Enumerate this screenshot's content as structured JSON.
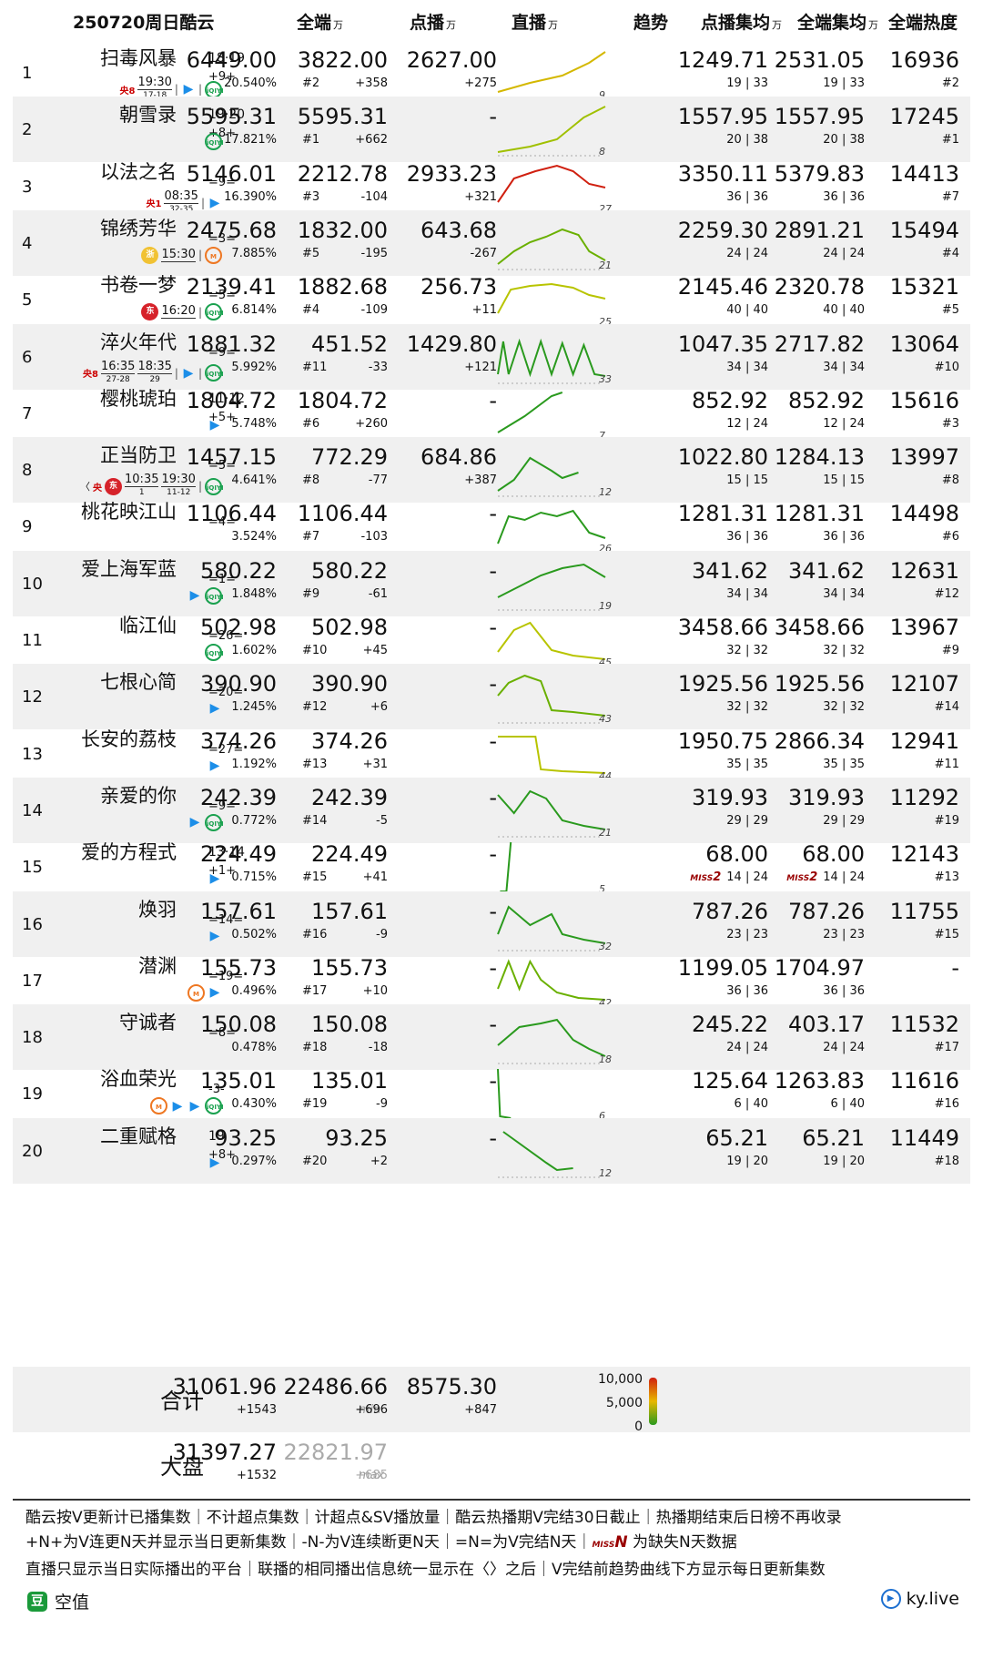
{
  "header": {
    "title": "250720周日酷云",
    "all": "全端",
    "vod": "点播",
    "live": "直播",
    "unit": "万",
    "trend": "趋势",
    "vod_avg": "点播集均",
    "all_avg": "全端集均",
    "heat": "全端热度"
  },
  "rows": [
    {
      "rank": "1",
      "name": "扫毒风暴",
      "eps": "18·19",
      "upd": "+9+",
      "plat": [
        {
          "t": "ch",
          "v": "央8"
        },
        {
          "t": "ts",
          "a": "19:30",
          "b": "17-18"
        },
        {
          "t": "sep"
        },
        {
          "t": "y"
        },
        {
          "t": "sep"
        },
        {
          "t": "i"
        }
      ],
      "all": "6449.00",
      "share": "20.540%",
      "vod": "3822.00",
      "vod_rank": "#2",
      "vod_diff": "+358",
      "live": "2627.00",
      "live_diff": "+275",
      "trend_days": "9",
      "vod_avg": "1249.71",
      "vod_eps": "19 | 33",
      "all_avg": "2531.05",
      "all_eps": "19 | 33",
      "heat": "16936",
      "heat_rank": "#2"
    },
    {
      "rank": "2",
      "name": "朝雪录",
      "eps": "19·20",
      "upd": "+8+",
      "plat": [
        {
          "t": "i"
        }
      ],
      "all": "5595.31",
      "share": "17.821%",
      "vod": "5595.31",
      "vod_rank": "#1",
      "vod_diff": "+662",
      "live": "-",
      "live_diff": "",
      "trend_days": "8",
      "vod_avg": "1557.95",
      "vod_eps": "20 | 38",
      "all_avg": "1557.95",
      "all_eps": "20 | 38",
      "heat": "17245",
      "heat_rank": "#1"
    },
    {
      "rank": "3",
      "name": "以法之名",
      "eps": "",
      "upd": "=9=",
      "plat": [
        {
          "t": "ch",
          "v": "央1"
        },
        {
          "t": "ts",
          "a": "08:35",
          "b": "32-35"
        },
        {
          "t": "sep"
        },
        {
          "t": "y"
        }
      ],
      "all": "5146.01",
      "share": "16.390%",
      "vod": "2212.78",
      "vod_rank": "#3",
      "vod_diff": "-104",
      "live": "2933.23",
      "live_diff": "+321",
      "trend_days": "27",
      "vod_avg": "3350.11",
      "vod_eps": "36 | 36",
      "all_avg": "5379.83",
      "all_eps": "36 | 36",
      "heat": "14413",
      "heat_rank": "#7"
    },
    {
      "rank": "4",
      "name": "锦绣芳华",
      "eps": "",
      "upd": "=3=",
      "plat": [
        {
          "t": "gd",
          "v": "浙"
        },
        {
          "t": "ts",
          "a": "15:30",
          "b": ""
        },
        {
          "t": "sep"
        },
        {
          "t": "m"
        }
      ],
      "all": "2475.68",
      "share": "7.885%",
      "vod": "1832.00",
      "vod_rank": "#5",
      "vod_diff": "-195",
      "live": "643.68",
      "live_diff": "-267",
      "trend_days": "21",
      "vod_avg": "2259.30",
      "vod_eps": "24 | 24",
      "all_avg": "2891.21",
      "all_eps": "24 | 24",
      "heat": "15494",
      "heat_rank": "#4"
    },
    {
      "rank": "5",
      "name": "书卷一梦",
      "eps": "",
      "upd": "=5=",
      "plat": [
        {
          "t": "t",
          "v": "东"
        },
        {
          "t": "ts",
          "a": "16:20",
          "b": ""
        },
        {
          "t": "sep"
        },
        {
          "t": "i"
        }
      ],
      "all": "2139.41",
      "share": "6.814%",
      "vod": "1882.68",
      "vod_rank": "#4",
      "vod_diff": "-109",
      "live": "256.73",
      "live_diff": "+11",
      "trend_days": "25",
      "vod_avg": "2145.46",
      "vod_eps": "40 | 40",
      "all_avg": "2320.78",
      "all_eps": "40 | 40",
      "heat": "15321",
      "heat_rank": "#5"
    },
    {
      "rank": "6",
      "name": "淬火年代",
      "eps": "",
      "upd": "=9=",
      "plat": [
        {
          "t": "ch",
          "v": "央8"
        },
        {
          "t": "ts",
          "a": "16:35",
          "b": "27-28"
        },
        {
          "t": "ts",
          "a": "18:35",
          "b": "29"
        },
        {
          "t": "sep"
        },
        {
          "t": "y"
        },
        {
          "t": "sep"
        },
        {
          "t": "i"
        }
      ],
      "all": "1881.32",
      "share": "5.992%",
      "vod": "451.52",
      "vod_rank": "#11",
      "vod_diff": "-33",
      "live": "1429.80",
      "live_diff": "+121",
      "trend_days": "33",
      "vod_avg": "1047.35",
      "vod_eps": "34 | 34",
      "all_avg": "2717.82",
      "all_eps": "34 | 34",
      "heat": "13064",
      "heat_rank": "#10"
    },
    {
      "rank": "7",
      "name": "樱桃琥珀",
      "eps": "11·12",
      "upd": "+5+",
      "plat": [
        {
          "t": "y"
        }
      ],
      "all": "1804.72",
      "share": "5.748%",
      "vod": "1804.72",
      "vod_rank": "#6",
      "vod_diff": "+260",
      "live": "-",
      "live_diff": "",
      "trend_days": "7",
      "vod_avg": "852.92",
      "vod_eps": "12 | 24",
      "all_avg": "852.92",
      "all_eps": "12 | 24",
      "heat": "15616",
      "heat_rank": "#3"
    },
    {
      "rank": "8",
      "name": "正当防卫",
      "eps": "",
      "upd": "=5=",
      "plat": [
        {
          "t": "txt",
          "v": "〈"
        },
        {
          "t": "ch",
          "v": "央"
        },
        {
          "t": "t",
          "v": "东"
        },
        {
          "t": "ts",
          "a": "10:35",
          "b": "1"
        },
        {
          "t": "ts",
          "a": "19:30",
          "b": "11-12"
        },
        {
          "t": "sep"
        },
        {
          "t": "i"
        }
      ],
      "all": "1457.15",
      "share": "4.641%",
      "vod": "772.29",
      "vod_rank": "#8",
      "vod_diff": "-77",
      "live": "684.86",
      "live_diff": "+387",
      "trend_days": "12",
      "vod_avg": "1022.80",
      "vod_eps": "15 | 15",
      "all_avg": "1284.13",
      "all_eps": "15 | 15",
      "heat": "13997",
      "heat_rank": "#8"
    },
    {
      "rank": "9",
      "name": "桃花映江山",
      "eps": "",
      "upd": "=4=",
      "plat": [],
      "all": "1106.44",
      "share": "3.524%",
      "vod": "1106.44",
      "vod_rank": "#7",
      "vod_diff": "-103",
      "live": "-",
      "live_diff": "",
      "trend_days": "26",
      "vod_avg": "1281.31",
      "vod_eps": "36 | 36",
      "all_avg": "1281.31",
      "all_eps": "36 | 36",
      "heat": "14498",
      "heat_rank": "#6"
    },
    {
      "rank": "10",
      "name": "爱上海军蓝",
      "eps": "",
      "upd": "=1=",
      "plat": [
        {
          "t": "y"
        },
        {
          "t": "i"
        }
      ],
      "all": "580.22",
      "share": "1.848%",
      "vod": "580.22",
      "vod_rank": "#9",
      "vod_diff": "-61",
      "live": "-",
      "live_diff": "",
      "trend_days": "19",
      "vod_avg": "341.62",
      "vod_eps": "34 | 34",
      "all_avg": "341.62",
      "all_eps": "34 | 34",
      "heat": "12631",
      "heat_rank": "#12"
    },
    {
      "rank": "11",
      "name": "临江仙",
      "eps": "",
      "upd": "=26=",
      "plat": [
        {
          "t": "i"
        }
      ],
      "all": "502.98",
      "share": "1.602%",
      "vod": "502.98",
      "vod_rank": "#10",
      "vod_diff": "+45",
      "live": "-",
      "live_diff": "",
      "trend_days": "45",
      "vod_avg": "3458.66",
      "vod_eps": "32 | 32",
      "all_avg": "3458.66",
      "all_eps": "32 | 32",
      "heat": "13967",
      "heat_rank": "#9"
    },
    {
      "rank": "12",
      "name": "七根心简",
      "eps": "",
      "upd": "=20=",
      "plat": [
        {
          "t": "y"
        }
      ],
      "all": "390.90",
      "share": "1.245%",
      "vod": "390.90",
      "vod_rank": "#12",
      "vod_diff": "+6",
      "live": "-",
      "live_diff": "",
      "trend_days": "43",
      "vod_avg": "1925.56",
      "vod_eps": "32 | 32",
      "all_avg": "1925.56",
      "all_eps": "32 | 32",
      "heat": "12107",
      "heat_rank": "#14"
    },
    {
      "rank": "13",
      "name": "长安的荔枝",
      "eps": "",
      "upd": "=27=",
      "plat": [
        {
          "t": "y"
        }
      ],
      "all": "374.26",
      "share": "1.192%",
      "vod": "374.26",
      "vod_rank": "#13",
      "vod_diff": "+31",
      "live": "-",
      "live_diff": "",
      "trend_days": "44",
      "vod_avg": "1950.75",
      "vod_eps": "35 | 35",
      "all_avg": "2866.34",
      "all_eps": "35 | 35",
      "heat": "12941",
      "heat_rank": "#11"
    },
    {
      "rank": "14",
      "name": "亲爱的你",
      "eps": "",
      "upd": "=9=",
      "plat": [
        {
          "t": "y"
        },
        {
          "t": "i"
        }
      ],
      "all": "242.39",
      "share": "0.772%",
      "vod": "242.39",
      "vod_rank": "#14",
      "vod_diff": "-5",
      "live": "-",
      "live_diff": "",
      "trend_days": "21",
      "vod_avg": "319.93",
      "vod_eps": "29 | 29",
      "all_avg": "319.93",
      "all_eps": "29 | 29",
      "heat": "11292",
      "heat_rank": "#19"
    },
    {
      "rank": "15",
      "name": "爱的方程式",
      "eps": "13·14",
      "upd": "+1+",
      "plat": [
        {
          "t": "y"
        }
      ],
      "all": "224.49",
      "share": "0.715%",
      "vod": "224.49",
      "vod_rank": "#15",
      "vod_diff": "+41",
      "live": "-",
      "live_diff": "",
      "trend_days": "5",
      "vod_avg": "68.00",
      "vod_eps": "14 | 24",
      "all_avg": "68.00",
      "all_eps": "14 | 24",
      "heat": "12143",
      "heat_rank": "#13",
      "miss": "MISS",
      "miss_n": "2"
    },
    {
      "rank": "16",
      "name": "焕羽",
      "eps": "",
      "upd": "=14=",
      "plat": [
        {
          "t": "y"
        }
      ],
      "all": "157.61",
      "share": "0.502%",
      "vod": "157.61",
      "vod_rank": "#16",
      "vod_diff": "-9",
      "live": "-",
      "live_diff": "",
      "trend_days": "32",
      "vod_avg": "787.26",
      "vod_eps": "23 | 23",
      "all_avg": "787.26",
      "all_eps": "23 | 23",
      "heat": "11755",
      "heat_rank": "#15"
    },
    {
      "rank": "17",
      "name": "潜渊",
      "eps": "",
      "upd": "=19=",
      "plat": [
        {
          "t": "m"
        },
        {
          "t": "y"
        }
      ],
      "all": "155.73",
      "share": "0.496%",
      "vod": "155.73",
      "vod_rank": "#17",
      "vod_diff": "+10",
      "live": "-",
      "live_diff": "",
      "trend_days": "42",
      "vod_avg": "1199.05",
      "vod_eps": "36 | 36",
      "all_avg": "1704.97",
      "all_eps": "36 | 36",
      "heat": "-",
      "heat_rank": ""
    },
    {
      "rank": "18",
      "name": "守诚者",
      "eps": "",
      "upd": "=8=",
      "plat": [],
      "all": "150.08",
      "share": "0.478%",
      "vod": "150.08",
      "vod_rank": "#18",
      "vod_diff": "-18",
      "live": "-",
      "live_diff": "",
      "trend_days": "18",
      "vod_avg": "245.22",
      "vod_eps": "24 | 24",
      "all_avg": "403.17",
      "all_eps": "24 | 24",
      "heat": "11532",
      "heat_rank": "#17"
    },
    {
      "rank": "19",
      "name": "浴血荣光",
      "eps": "",
      "upd": "-3-",
      "plat": [
        {
          "t": "m"
        },
        {
          "t": "y"
        },
        {
          "t": "y"
        },
        {
          "t": "i"
        }
      ],
      "all": "135.01",
      "share": "0.430%",
      "vod": "135.01",
      "vod_rank": "#19",
      "vod_diff": "-9",
      "live": "-",
      "live_diff": "",
      "trend_days": "6",
      "vod_avg": "125.64",
      "vod_eps": "6 | 40",
      "all_avg": "1263.83",
      "all_eps": "6 | 40",
      "heat": "11616",
      "heat_rank": "#16"
    },
    {
      "rank": "20",
      "name": "二重赋格",
      "eps": "19",
      "upd": "+8+",
      "plat": [
        {
          "t": "y"
        }
      ],
      "all": "93.25",
      "share": "0.297%",
      "vod": "93.25",
      "vod_rank": "#20",
      "vod_diff": "+2",
      "live": "-",
      "live_diff": "",
      "trend_days": "12",
      "vod_avg": "65.21",
      "vod_eps": "19 | 20",
      "all_avg": "65.21",
      "all_eps": "19 | 20",
      "heat": "11449",
      "heat_rank": "#18"
    }
  ],
  "total": {
    "label": "合计",
    "all": "31061.96",
    "all_diff": "+1543",
    "vod": "22486.66",
    "vod_note": "min",
    "vod_diff": "+696",
    "live": "8575.30",
    "live_diff": "+847",
    "scale": [
      "10,000",
      "5,000",
      "0"
    ]
  },
  "market": {
    "label": "大盘",
    "all": "31397.27",
    "all_diff": "+1532",
    "vod": "22821.97",
    "vod_note": "max",
    "vod_diff": "+685"
  },
  "footer": {
    "l1": "酷云按V更新计已播集数｜不计超点集数｜计超点&SV播放量｜酷云热播期V完结30日截止｜热播期结束后日榜不再收录",
    "l2a": "+N+为V连更N天并显示当日更新集数｜-N-为V连续断更N天｜=N=为V完结N天｜",
    "l2miss": "MISS",
    "l2n": "N",
    "l2b": " 为缺失N天数据",
    "l3": "直播只显示当日实际播出的平台｜联播的相同播出信息统一显示在〈〉之后｜V完结前趋势曲线下方显示每日更新集数",
    "author": "空值",
    "site": "ky.live"
  },
  "colors": {
    "green": "#2a9a1e",
    "yellow": "#d9c200",
    "red": "#d02010",
    "stripe": "#f0f0f0"
  }
}
